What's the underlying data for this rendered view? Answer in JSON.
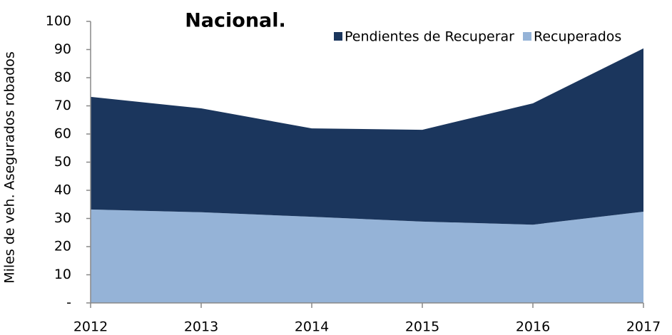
{
  "chart_data": {
    "type": "stacked_area",
    "title": "Nacional.",
    "y_label": "Miles de veh. Asegurados robados",
    "categories": [
      "2012",
      "2013",
      "2014",
      "2015",
      "2016",
      "2017"
    ],
    "series": [
      {
        "name": "Pendientes de Recuperar",
        "color": "#1b365d",
        "values": [
          40.0,
          36.9,
          31.4,
          32.6,
          43.1,
          58.0
        ]
      },
      {
        "name": "Recuperados",
        "color": "#95b3d7",
        "values": [
          33.2,
          32.2,
          30.6,
          28.9,
          27.8,
          32.4
        ]
      }
    ],
    "ylim": [
      0,
      100
    ],
    "yticks": [
      {
        "value": 0,
        "label": "-"
      },
      10,
      20,
      30,
      40,
      50,
      60,
      70,
      80,
      90,
      100
    ],
    "legend": "top-right"
  }
}
